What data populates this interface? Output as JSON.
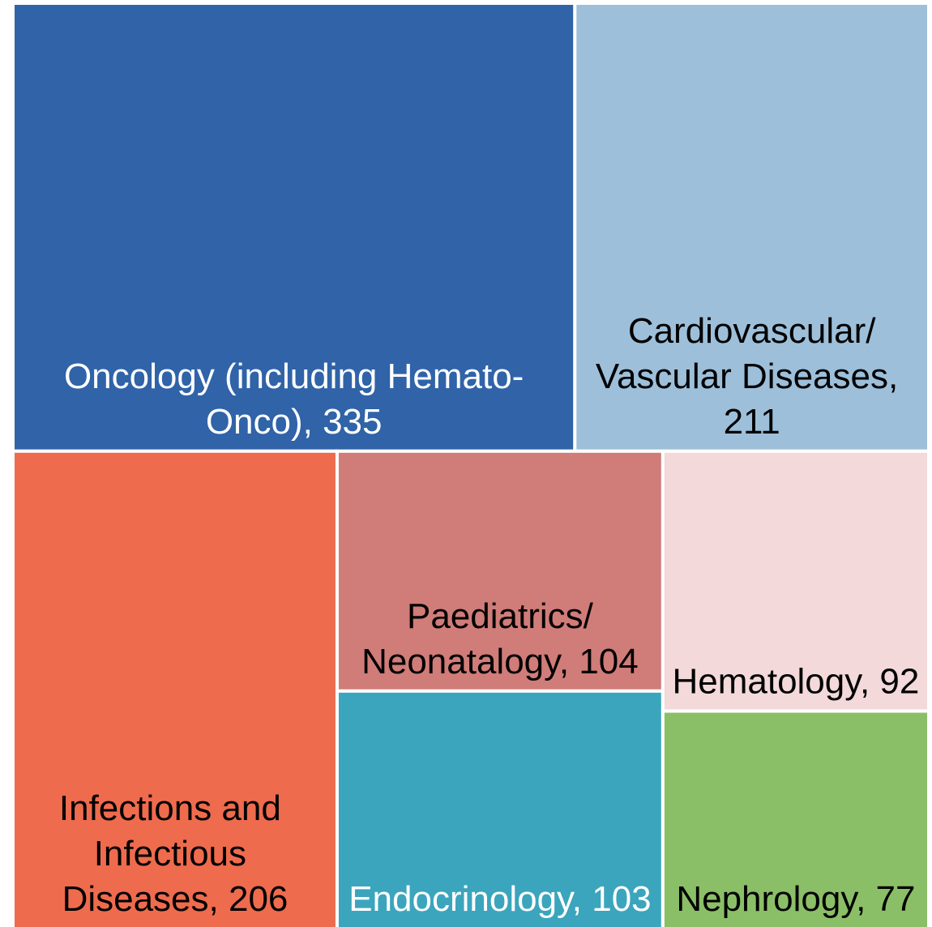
{
  "chart_data": {
    "type": "treemap",
    "categories": [
      "Oncology (including Hemato-Onco), 335",
      "Cardiovascular/Vascular Diseases, 211",
      "Infections and Infectious Diseases, 206",
      "Paediatrics/Neonatalogy, 104",
      "Endocrinology, 103",
      "Hematology, 92",
      "Nephrology, 77"
    ],
    "values": [
      335,
      211,
      206,
      104,
      103,
      92,
      77
    ],
    "colors": [
      "#3063a8",
      "#9dbfda",
      "#ee6b4d",
      "#d07c79",
      "#3ba5bd",
      "#f3d9da",
      "#8bbf67"
    ],
    "label_colors": [
      "#ffffff",
      "#000000",
      "#000000",
      "#000000",
      "#ffffff",
      "#000000",
      "#000000"
    ]
  }
}
